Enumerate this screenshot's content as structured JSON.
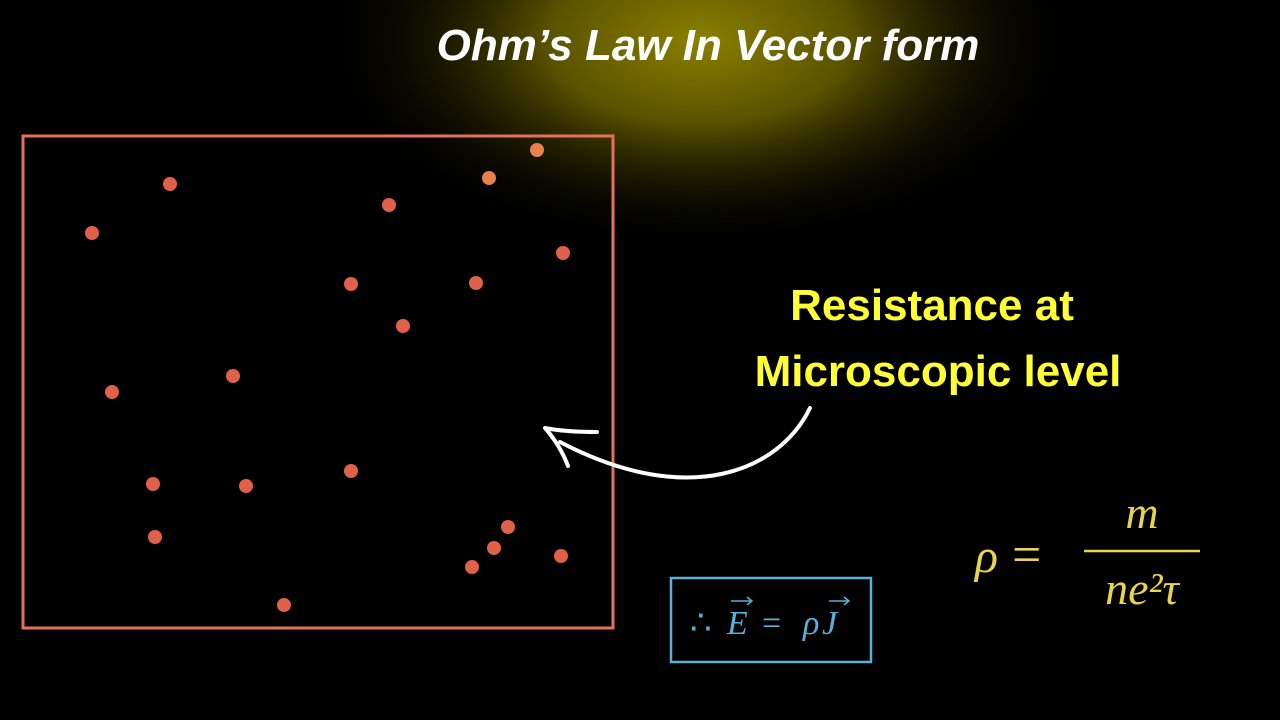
{
  "title": "Ohm’s Law In Vector form",
  "label": {
    "lines": [
      "Resistance at",
      "Microscopic level"
    ]
  },
  "formula": {
    "lhs": "ρ",
    "operator": "=",
    "numerator": "m",
    "denominator": "ne²τ"
  },
  "boxed_equation": {
    "therefore": "∴",
    "vector_e": "E",
    "operator": "=",
    "rho": "ρ",
    "vector_j": "J"
  }
}
